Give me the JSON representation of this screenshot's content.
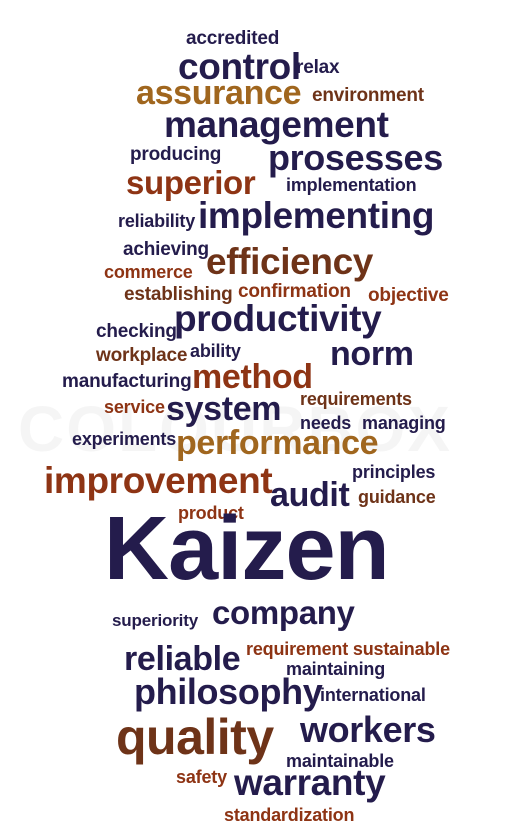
{
  "palette": {
    "navy": "#241c4c",
    "rust": "#8e3414",
    "gold": "#a0661e",
    "brown": "#6e3318"
  },
  "watermark": "COLOURBOX",
  "words": [
    {
      "id": "accredited",
      "text": "accredited",
      "color": "navy"
    },
    {
      "id": "control",
      "text": "control",
      "color": "navy"
    },
    {
      "id": "relax",
      "text": "relax",
      "color": "navy"
    },
    {
      "id": "assurance",
      "text": "assurance",
      "color": "gold"
    },
    {
      "id": "environment",
      "text": "environment",
      "color": "brown"
    },
    {
      "id": "management",
      "text": "management",
      "color": "navy"
    },
    {
      "id": "producing",
      "text": "producing",
      "color": "navy"
    },
    {
      "id": "prosesses",
      "text": "prosesses",
      "color": "navy"
    },
    {
      "id": "superior",
      "text": "superior",
      "color": "rust"
    },
    {
      "id": "implementation",
      "text": "implementation",
      "color": "navy"
    },
    {
      "id": "reliability",
      "text": "reliability",
      "color": "navy"
    },
    {
      "id": "implementing",
      "text": "implementing",
      "color": "navy"
    },
    {
      "id": "achieving",
      "text": "achieving",
      "color": "navy"
    },
    {
      "id": "efficiency",
      "text": "efficiency",
      "color": "brown"
    },
    {
      "id": "commerce",
      "text": "commerce",
      "color": "rust"
    },
    {
      "id": "establishing",
      "text": "establishing",
      "color": "brown"
    },
    {
      "id": "confirmation",
      "text": "confirmation",
      "color": "rust"
    },
    {
      "id": "objective",
      "text": "objective",
      "color": "rust"
    },
    {
      "id": "checking",
      "text": "checking",
      "color": "navy"
    },
    {
      "id": "productivity",
      "text": "productivity",
      "color": "navy"
    },
    {
      "id": "workplace",
      "text": "workplace",
      "color": "brown"
    },
    {
      "id": "ability",
      "text": "ability",
      "color": "navy"
    },
    {
      "id": "norm",
      "text": "norm",
      "color": "navy"
    },
    {
      "id": "manufacturing",
      "text": "manufacturing",
      "color": "navy"
    },
    {
      "id": "method",
      "text": "method",
      "color": "rust"
    },
    {
      "id": "requirements",
      "text": "requirements",
      "color": "brown"
    },
    {
      "id": "service",
      "text": "service",
      "color": "rust"
    },
    {
      "id": "system",
      "text": "system",
      "color": "navy"
    },
    {
      "id": "needs",
      "text": "needs",
      "color": "navy"
    },
    {
      "id": "managing",
      "text": "managing",
      "color": "navy"
    },
    {
      "id": "experiments",
      "text": "experiments",
      "color": "navy"
    },
    {
      "id": "performance",
      "text": "performance",
      "color": "gold"
    },
    {
      "id": "principles",
      "text": "principles",
      "color": "navy"
    },
    {
      "id": "improvement",
      "text": "improvement",
      "color": "rust"
    },
    {
      "id": "audit",
      "text": "audit",
      "color": "navy"
    },
    {
      "id": "guidance",
      "text": "guidance",
      "color": "brown"
    },
    {
      "id": "product",
      "text": "product",
      "color": "rust"
    },
    {
      "id": "kaizen",
      "text": "Kaizen",
      "color": "navy"
    },
    {
      "id": "superiority",
      "text": "superiority",
      "color": "navy"
    },
    {
      "id": "company",
      "text": "company",
      "color": "navy"
    },
    {
      "id": "reliable",
      "text": "reliable",
      "color": "navy"
    },
    {
      "id": "requirement-sustainable",
      "text": "requirement sustainable",
      "color": "rust"
    },
    {
      "id": "maintaining",
      "text": "maintaining",
      "color": "navy"
    },
    {
      "id": "philosophy",
      "text": "philosophy",
      "color": "navy"
    },
    {
      "id": "international",
      "text": "international",
      "color": "navy"
    },
    {
      "id": "quality",
      "text": "quality",
      "color": "brown"
    },
    {
      "id": "workers",
      "text": "workers",
      "color": "navy"
    },
    {
      "id": "maintainable",
      "text": "maintainable",
      "color": "navy"
    },
    {
      "id": "safety",
      "text": "safety",
      "color": "rust"
    },
    {
      "id": "warranty",
      "text": "warranty",
      "color": "navy"
    },
    {
      "id": "standardization",
      "text": "standardization",
      "color": "rust"
    }
  ]
}
